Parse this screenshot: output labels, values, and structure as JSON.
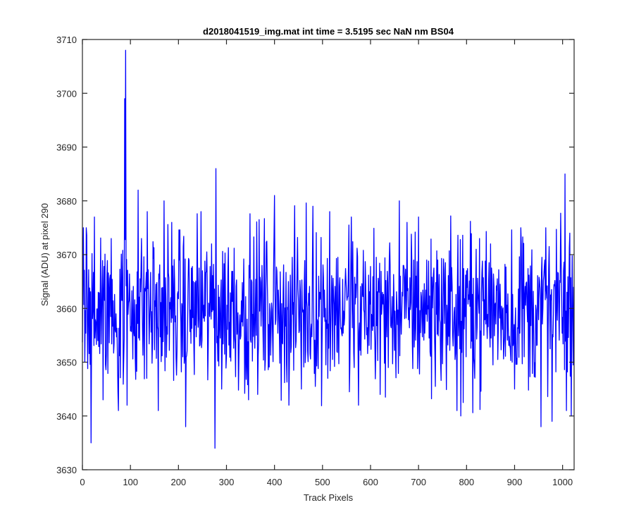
{
  "chart_data": {
    "type": "line",
    "title": "d2018041519_img.mat int time = 3.5195 sec  NaN nm BS04",
    "xlabel": "Track Pixels",
    "ylabel": "Signal (ADU) at pixel 290",
    "xlim": [
      0,
      1024
    ],
    "ylim": [
      3630,
      3710
    ],
    "xticks": [
      0,
      100,
      200,
      300,
      400,
      500,
      600,
      700,
      800,
      900,
      1000
    ],
    "yticks": [
      3630,
      3640,
      3650,
      3660,
      3670,
      3680,
      3690,
      3700,
      3710
    ],
    "grid": false,
    "line_color": "#0000ff",
    "n_points": 1024,
    "noise": {
      "mean": 3660,
      "low": 3645,
      "high": 3675
    },
    "key_points": [
      {
        "x": 2,
        "y": 3675
      },
      {
        "x": 5,
        "y": 3650
      },
      {
        "x": 8,
        "y": 3675
      },
      {
        "x": 18,
        "y": 3635
      },
      {
        "x": 25,
        "y": 3677
      },
      {
        "x": 43,
        "y": 3643
      },
      {
        "x": 60,
        "y": 3673
      },
      {
        "x": 75,
        "y": 3641
      },
      {
        "x": 88,
        "y": 3699
      },
      {
        "x": 90,
        "y": 3708
      },
      {
        "x": 93,
        "y": 3642
      },
      {
        "x": 116,
        "y": 3682
      },
      {
        "x": 135,
        "y": 3678
      },
      {
        "x": 158,
        "y": 3641
      },
      {
        "x": 170,
        "y": 3680
      },
      {
        "x": 215,
        "y": 3638
      },
      {
        "x": 276,
        "y": 3634
      },
      {
        "x": 278,
        "y": 3686
      },
      {
        "x": 290,
        "y": 3645
      },
      {
        "x": 346,
        "y": 3643
      },
      {
        "x": 400,
        "y": 3681
      },
      {
        "x": 430,
        "y": 3642
      },
      {
        "x": 456,
        "y": 3645
      },
      {
        "x": 480,
        "y": 3679
      },
      {
        "x": 515,
        "y": 3678
      },
      {
        "x": 560,
        "y": 3677
      },
      {
        "x": 575,
        "y": 3642
      },
      {
        "x": 620,
        "y": 3644
      },
      {
        "x": 660,
        "y": 3680
      },
      {
        "x": 690,
        "y": 3669
      },
      {
        "x": 700,
        "y": 3677
      },
      {
        "x": 740,
        "y": 3669
      },
      {
        "x": 780,
        "y": 3641
      },
      {
        "x": 788,
        "y": 3640
      },
      {
        "x": 800,
        "y": 3667
      },
      {
        "x": 820,
        "y": 3671
      },
      {
        "x": 850,
        "y": 3672
      },
      {
        "x": 900,
        "y": 3645
      },
      {
        "x": 913,
        "y": 3675
      },
      {
        "x": 955,
        "y": 3638
      },
      {
        "x": 965,
        "y": 3675
      },
      {
        "x": 978,
        "y": 3639
      },
      {
        "x": 1005,
        "y": 3685
      },
      {
        "x": 1008,
        "y": 3641
      },
      {
        "x": 1018,
        "y": 3640
      },
      {
        "x": 1023,
        "y": 3664
      }
    ]
  }
}
